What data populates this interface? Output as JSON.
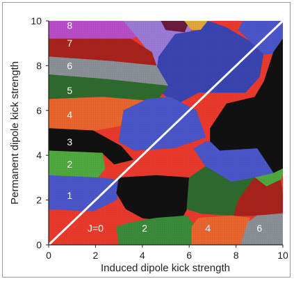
{
  "chart_data": {
    "type": "heatmap",
    "title": "",
    "xlabel": "Induced dipole kick strength",
    "ylabel": "Permanent dipole kick strength",
    "xlim": [
      0,
      10
    ],
    "ylim": [
      0,
      10
    ],
    "grid": false,
    "legend": "none",
    "x_ticks": [
      "0",
      "2",
      "4",
      "6",
      "8",
      "10"
    ],
    "y_ticks": [
      "0",
      "2",
      "4",
      "6",
      "8",
      "10"
    ],
    "diagonal_line": {
      "from": [
        0,
        0
      ],
      "to": [
        10,
        10
      ],
      "color": "#ffffff"
    },
    "colors": {
      "red": "#e8392c",
      "blue": "#4a56c8",
      "black": "#111111",
      "green": "#3a8a3a",
      "orange": "#e8652c",
      "darkgreen": "#2e6a2e",
      "gray": "#8a8f96",
      "darkred": "#a8221c",
      "purple": "#b84dc8",
      "brightgreen": "#4ea83e",
      "lilac": "#9a7ad6",
      "navy": "#2a2a6a",
      "gold": "#e0a63a",
      "darkblue": "#3a44b0",
      "lightmauve": "#b48ae0",
      "darkmaroon": "#6a1a3a"
    },
    "region_labels": [
      {
        "text": "J=0",
        "x": 2.0,
        "y": 0.75
      },
      {
        "text": "2",
        "x": 4.1,
        "y": 0.75
      },
      {
        "text": "4",
        "x": 6.8,
        "y": 0.75
      },
      {
        "text": "6",
        "x": 9.0,
        "y": 0.75
      },
      {
        "text": "1",
        "x": 0.9,
        "y": 2.2
      },
      {
        "text": "2",
        "x": 0.9,
        "y": 3.6
      },
      {
        "text": "3",
        "x": 0.9,
        "y": 4.6
      },
      {
        "text": "4",
        "x": 0.9,
        "y": 5.8
      },
      {
        "text": "5",
        "x": 0.9,
        "y": 6.9
      },
      {
        "text": "6",
        "x": 0.9,
        "y": 8.0
      },
      {
        "text": "7",
        "x": 0.9,
        "y": 9.0
      },
      {
        "text": "8",
        "x": 0.9,
        "y": 9.8
      }
    ],
    "regions": [
      {
        "color": "red",
        "points": [
          [
            0,
            0
          ],
          [
            10,
            0
          ],
          [
            10,
            10
          ],
          [
            0,
            10
          ]
        ]
      },
      {
        "color": "purple",
        "points": [
          [
            0,
            10
          ],
          [
            0,
            9.2
          ],
          [
            3.5,
            9.2
          ],
          [
            5.4,
            10
          ]
        ]
      },
      {
        "color": "lilac",
        "points": [
          [
            3.2,
            10
          ],
          [
            4.0,
            9.0
          ],
          [
            5.4,
            6.8
          ],
          [
            6.3,
            7.9
          ],
          [
            6.0,
            10
          ]
        ]
      },
      {
        "color": "darkmaroon",
        "points": [
          [
            4.8,
            10
          ],
          [
            5.0,
            9.6
          ],
          [
            5.8,
            9.5
          ],
          [
            6.0,
            10
          ]
        ]
      },
      {
        "color": "gold",
        "points": [
          [
            5.8,
            10
          ],
          [
            6.1,
            9.6
          ],
          [
            6.6,
            9.6
          ],
          [
            6.9,
            10
          ]
        ]
      },
      {
        "color": "darkblue",
        "points": [
          [
            6.8,
            10
          ],
          [
            6.5,
            9.6
          ],
          [
            5.4,
            9.4
          ],
          [
            4.7,
            8.4
          ],
          [
            4.5,
            7.0
          ],
          [
            5.5,
            6.3
          ],
          [
            6.4,
            6.8
          ],
          [
            8.4,
            6.8
          ],
          [
            9.0,
            7.5
          ],
          [
            9.2,
            8.7
          ],
          [
            8.4,
            9.2
          ],
          [
            7.6,
            9.7
          ]
        ]
      },
      {
        "color": "blue",
        "points": [
          [
            9.2,
            8.5
          ],
          [
            8.6,
            9.1
          ],
          [
            8.1,
            9.6
          ],
          [
            8.3,
            10
          ],
          [
            10,
            10
          ],
          [
            10,
            8.6
          ]
        ]
      },
      {
        "color": "darkred",
        "points": [
          [
            0,
            9.2
          ],
          [
            3.5,
            9.2
          ],
          [
            4.4,
            8.6
          ],
          [
            4.6,
            8.0
          ],
          [
            2.7,
            8.2
          ],
          [
            0,
            8.4
          ]
        ]
      },
      {
        "color": "gray",
        "points": [
          [
            0,
            8.4
          ],
          [
            2.7,
            8.2
          ],
          [
            4.6,
            8.0
          ],
          [
            5.1,
            7.1
          ],
          [
            2.4,
            7.4
          ],
          [
            0,
            7.6
          ]
        ]
      },
      {
        "color": "darkgreen",
        "points": [
          [
            0,
            7.6
          ],
          [
            2.4,
            7.4
          ],
          [
            5.1,
            7.1
          ],
          [
            4.6,
            6.4
          ],
          [
            2.3,
            6.6
          ],
          [
            0,
            6.5
          ]
        ]
      },
      {
        "color": "orange",
        "points": [
          [
            0,
            6.5
          ],
          [
            2.3,
            6.6
          ],
          [
            4.6,
            6.4
          ],
          [
            4.0,
            5.6
          ],
          [
            3.0,
            5.3
          ],
          [
            1.9,
            5.1
          ],
          [
            0,
            5.2
          ]
        ]
      },
      {
        "color": "blue",
        "points": [
          [
            3.2,
            6.0
          ],
          [
            4.2,
            6.5
          ],
          [
            5.2,
            6.6
          ],
          [
            6.3,
            6.0
          ],
          [
            6.7,
            4.8
          ],
          [
            5.3,
            4.3
          ],
          [
            3.7,
            4.2
          ],
          [
            3.0,
            4.6
          ]
        ]
      },
      {
        "color": "black",
        "points": [
          [
            0,
            5.2
          ],
          [
            1.9,
            5.1
          ],
          [
            3.1,
            4.4
          ],
          [
            3.6,
            3.8
          ],
          [
            2.8,
            3.6
          ],
          [
            2.3,
            4.1
          ],
          [
            0,
            4.2
          ]
        ]
      },
      {
        "color": "red",
        "points": [
          [
            3.7,
            4.2
          ],
          [
            5.3,
            4.3
          ],
          [
            6.2,
            4.3
          ],
          [
            6.7,
            3.5
          ],
          [
            6.0,
            3.0
          ],
          [
            4.6,
            3.1
          ],
          [
            3.6,
            3.3
          ]
        ]
      },
      {
        "color": "brightgreen",
        "points": [
          [
            0,
            4.2
          ],
          [
            2.3,
            4.1
          ],
          [
            2.4,
            3.4
          ],
          [
            2.1,
            3.0
          ],
          [
            0,
            3.1
          ]
        ]
      },
      {
        "color": "blue",
        "points": [
          [
            0,
            3.1
          ],
          [
            2.1,
            3.0
          ],
          [
            3.1,
            2.9
          ],
          [
            2.9,
            2.0
          ],
          [
            1.9,
            1.5
          ],
          [
            0,
            1.6
          ]
        ]
      },
      {
        "color": "black",
        "points": [
          [
            10,
            3.4
          ],
          [
            9.6,
            3.2
          ],
          [
            8.9,
            4.3
          ],
          [
            7.3,
            4.2
          ],
          [
            6.9,
            4.6
          ],
          [
            6.9,
            5.2
          ],
          [
            7.6,
            6.3
          ],
          [
            8.8,
            6.6
          ],
          [
            9.2,
            7.3
          ],
          [
            9.6,
            8.6
          ],
          [
            10,
            9.2
          ]
        ]
      },
      {
        "color": "blue",
        "points": [
          [
            6.2,
            4.3
          ],
          [
            6.7,
            4.6
          ],
          [
            6.9,
            4.6
          ],
          [
            7.3,
            4.2
          ],
          [
            8.9,
            4.3
          ],
          [
            9.6,
            3.2
          ],
          [
            8.8,
            3.0
          ],
          [
            7.8,
            2.8
          ],
          [
            6.7,
            3.5
          ]
        ]
      },
      {
        "color": "brightgreen",
        "points": [
          [
            8.8,
            3.0
          ],
          [
            9.6,
            3.2
          ],
          [
            10,
            3.4
          ],
          [
            10,
            3.2
          ],
          [
            9.9,
            2.9
          ],
          [
            9.3,
            2.6
          ]
        ]
      },
      {
        "color": "black",
        "points": [
          [
            3.0,
            3.0
          ],
          [
            4.6,
            3.1
          ],
          [
            6.0,
            3.0
          ],
          [
            5.9,
            1.6
          ],
          [
            5.6,
            1.0
          ],
          [
            4.0,
            1.2
          ],
          [
            3.3,
            1.6
          ],
          [
            2.9,
            2.3
          ]
        ]
      },
      {
        "color": "darkgreen",
        "points": [
          [
            6.0,
            3.0
          ],
          [
            6.7,
            3.5
          ],
          [
            7.8,
            2.8
          ],
          [
            8.8,
            3.0
          ],
          [
            8.1,
            2.0
          ],
          [
            7.9,
            1.3
          ],
          [
            6.5,
            1.4
          ],
          [
            5.9,
            1.6
          ]
        ]
      },
      {
        "color": "darkred",
        "points": [
          [
            8.8,
            3.0
          ],
          [
            9.3,
            2.6
          ],
          [
            9.9,
            2.9
          ],
          [
            10,
            2.2
          ],
          [
            10,
            1.4
          ],
          [
            8.7,
            1.3
          ],
          [
            7.9,
            1.3
          ],
          [
            8.1,
            2.0
          ]
        ]
      },
      {
        "color": "green",
        "points": [
          [
            3.0,
            0
          ],
          [
            6.1,
            0
          ],
          [
            6.2,
            0.9
          ],
          [
            5.9,
            1.3
          ],
          [
            4.6,
            1.2
          ],
          [
            3.5,
            1.0
          ],
          [
            2.9,
            0.8
          ]
        ]
      },
      {
        "color": "orange",
        "points": [
          [
            6.1,
            0
          ],
          [
            8.2,
            0
          ],
          [
            8.6,
            1.2
          ],
          [
            7.8,
            1.3
          ],
          [
            6.4,
            1.2
          ],
          [
            6.1,
            0.8
          ]
        ]
      },
      {
        "color": "gray",
        "points": [
          [
            8.2,
            0
          ],
          [
            10,
            0
          ],
          [
            10,
            1.4
          ],
          [
            8.9,
            1.3
          ],
          [
            8.5,
            1.0
          ]
        ]
      }
    ]
  }
}
